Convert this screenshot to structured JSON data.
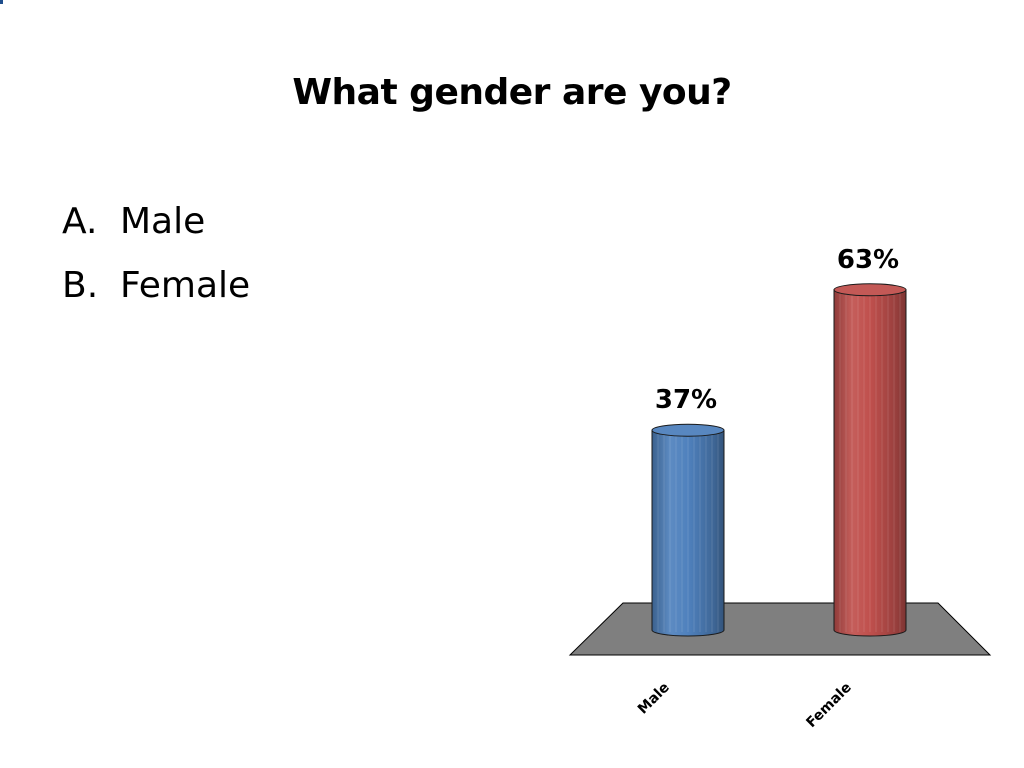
{
  "slide": {
    "title": "What gender are you?",
    "options": [
      {
        "letter": "A.",
        "label": "Male"
      },
      {
        "letter": "B.",
        "label": "Female"
      }
    ]
  },
  "chart_data": {
    "type": "bar",
    "style": "3d-cylinder",
    "categories": [
      "Male",
      "Female"
    ],
    "values": [
      37,
      63
    ],
    "value_labels": [
      "37%",
      "63%"
    ],
    "colors": [
      "#4f81bd",
      "#c0504d"
    ],
    "floor_color": "#7f7f7f",
    "ylim": [
      0,
      100
    ],
    "grid": false,
    "legend": "none"
  }
}
